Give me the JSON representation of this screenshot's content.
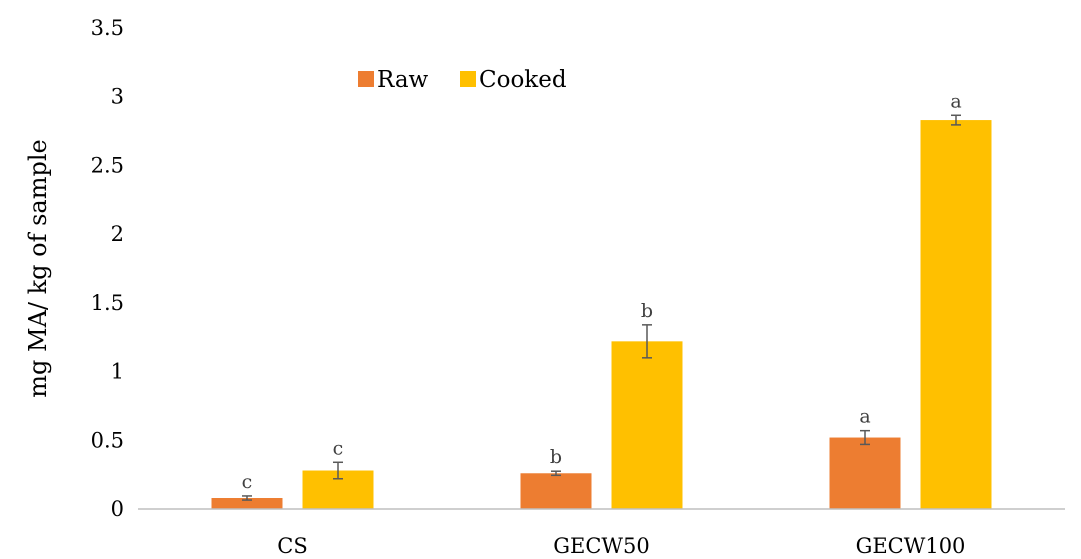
{
  "chart_data": {
    "type": "bar",
    "title": "",
    "xlabel": "",
    "ylabel": "mg MA/ kg of sample",
    "categories": [
      "CS",
      "GECW50",
      "GECW100"
    ],
    "ylim": [
      0,
      3.5
    ],
    "yticks": [
      "0",
      "0.5",
      "1",
      "1.5",
      "2",
      "2.5",
      "3",
      "3.5"
    ],
    "grid": false,
    "legend_position": "top-left",
    "series": [
      {
        "name": "Raw",
        "color": "#ED7D31",
        "values": [
          0.08,
          0.26,
          0.52
        ],
        "errors": [
          0.015,
          0.015,
          0.05
        ],
        "labels": [
          "c",
          "b",
          "a"
        ]
      },
      {
        "name": "Cooked",
        "color": "#FFC000",
        "values": [
          0.28,
          1.22,
          2.83
        ],
        "errors": [
          0.06,
          0.12,
          0.035
        ],
        "labels": [
          "c",
          "b",
          "a"
        ]
      }
    ]
  }
}
